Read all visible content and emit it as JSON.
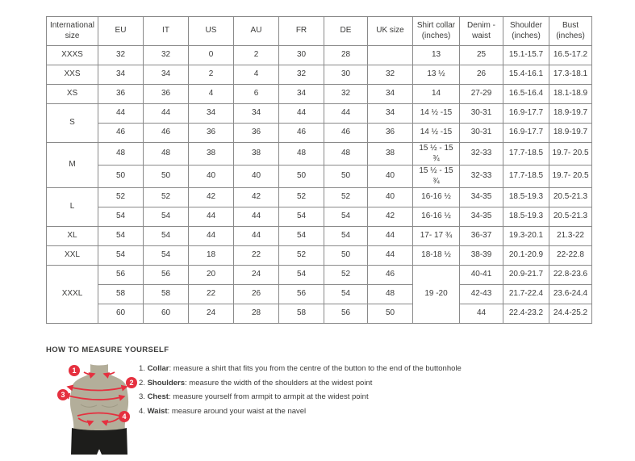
{
  "colors": {
    "accent_red": "#e5303f",
    "body_tan": "#b3ae9a",
    "shorts_black": "#1d1d1b",
    "border_gray": "#8a8a8a",
    "text_dark": "#3b3b3a"
  },
  "table": {
    "headers": [
      "International size",
      "EU",
      "IT",
      "US",
      "AU",
      "FR",
      "DE",
      "UK size",
      "Shirt collar (inches)",
      "Denim - waist",
      "Shoulder (inches)",
      "Bust (inches)"
    ],
    "groups": [
      {
        "label": "XXXS",
        "rows": [
          [
            "32",
            "32",
            "0",
            "2",
            "30",
            "28",
            "",
            "13",
            "25",
            "15.1-15.7",
            "16.5-17.2"
          ]
        ]
      },
      {
        "label": "XXS",
        "rows": [
          [
            "34",
            "34",
            "2",
            "4",
            "32",
            "30",
            "32",
            "13 ½",
            "26",
            "15.4-16.1",
            "17.3-18.1"
          ]
        ]
      },
      {
        "label": "XS",
        "rows": [
          [
            "36",
            "36",
            "4",
            "6",
            "34",
            "32",
            "34",
            "14",
            "27-29",
            "16.5-16.4",
            "18.1-18.9"
          ]
        ]
      },
      {
        "label": "S",
        "rows": [
          [
            "44",
            "44",
            "34",
            "34",
            "44",
            "44",
            "34",
            "14 ½ -15",
            "30-31",
            "16.9-17.7",
            "18.9-19.7"
          ],
          [
            "46",
            "46",
            "36",
            "36",
            "46",
            "46",
            "36",
            "14 ½ -15",
            "30-31",
            "16.9-17.7",
            "18.9-19.7"
          ]
        ]
      },
      {
        "label": "M",
        "rows": [
          [
            "48",
            "48",
            "38",
            "38",
            "48",
            "48",
            "38",
            "15 ½ - 15 ¾",
            "32-33",
            "17.7-18.5",
            "19.7- 20.5"
          ],
          [
            "50",
            "50",
            "40",
            "40",
            "50",
            "50",
            "40",
            "15 ½ - 15 ¾",
            "32-33",
            "17.7-18.5",
            "19.7- 20.5"
          ]
        ]
      },
      {
        "label": "L",
        "rows": [
          [
            "52",
            "52",
            "42",
            "42",
            "52",
            "52",
            "40",
            "16-16 ½",
            "34-35",
            "18.5-19.3",
            "20.5-21.3"
          ],
          [
            "54",
            "54",
            "44",
            "44",
            "54",
            "54",
            "42",
            "16-16 ½",
            "34-35",
            "18.5-19.3",
            "20.5-21.3"
          ]
        ]
      },
      {
        "label": "XL",
        "rows": [
          [
            "54",
            "54",
            "44",
            "44",
            "54",
            "54",
            "44",
            "17- 17 ¾",
            "36-37",
            "19.3-20.1",
            "21.3-22"
          ]
        ]
      },
      {
        "label": "XXL",
        "rows": [
          [
            "54",
            "54",
            "18",
            "22",
            "52",
            "50",
            "44",
            "18-18 ½",
            "38-39",
            "20.1-20.9",
            "22-22.8"
          ]
        ]
      },
      {
        "label": "XXXL",
        "merged_collar": "19 -20",
        "rows": [
          [
            "56",
            "56",
            "20",
            "24",
            "54",
            "52",
            "46",
            "40-41",
            "20.9-21.7",
            "22.8-23.6"
          ],
          [
            "58",
            "58",
            "22",
            "26",
            "56",
            "54",
            "48",
            "42-43",
            "21.7-22.4",
            "23.6-24.4"
          ],
          [
            "60",
            "60",
            "24",
            "28",
            "58",
            "56",
            "50",
            "44",
            "22.4-23.2",
            "24.4-25.2"
          ]
        ]
      }
    ]
  },
  "measure": {
    "title": "HOW TO MEASURE YOURSELF",
    "steps": [
      {
        "num": "1",
        "label": "Collar",
        "text": "measure a shirt that fits you from the centre of the button to the end of the buttonhole"
      },
      {
        "num": "2",
        "label": "Shoulders",
        "text": "measure the width of the shoulders at the widest point"
      },
      {
        "num": "3",
        "label": "Chest",
        "text": "measure yourself from armpit to armpit at the widest point"
      },
      {
        "num": "4",
        "label": "Waist",
        "text": "measure around your waist at the navel"
      }
    ]
  }
}
